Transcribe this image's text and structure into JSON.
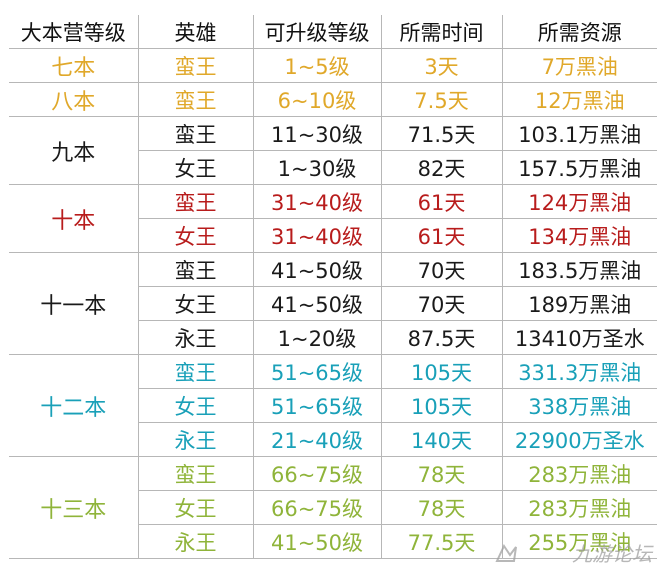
{
  "colors": {
    "gold": "#e0a82a",
    "dark": "#1a1a1a",
    "red": "#b81c1c",
    "teal": "#19a0b8",
    "green": "#8fb43a"
  },
  "headers": [
    "大本营等级",
    "英雄",
    "可升级等级",
    "所需时间",
    "所需资源"
  ],
  "groups": [
    {
      "level": "七本",
      "color": "#e0a82a",
      "rows": [
        {
          "hero": "蛮王",
          "range": "1~5级",
          "time": "3天",
          "cost": "7万黑油"
        }
      ]
    },
    {
      "level": "八本",
      "color": "#e0a82a",
      "rows": [
        {
          "hero": "蛮王",
          "range": "6~10级",
          "time": "7.5天",
          "cost": "12万黑油"
        }
      ]
    },
    {
      "level": "九本",
      "color": "#1a1a1a",
      "rows": [
        {
          "hero": "蛮王",
          "range": "11~30级",
          "time": "71.5天",
          "cost": "103.1万黑油"
        },
        {
          "hero": "女王",
          "range": "1~30级",
          "time": "82天",
          "cost": "157.5万黑油"
        }
      ]
    },
    {
      "level": "十本",
      "color": "#b81c1c",
      "rows": [
        {
          "hero": "蛮王",
          "range": "31~40级",
          "time": "61天",
          "cost": "124万黑油"
        },
        {
          "hero": "女王",
          "range": "31~40级",
          "time": "61天",
          "cost": "134万黑油"
        }
      ]
    },
    {
      "level": "十一本",
      "color": "#1a1a1a",
      "rows": [
        {
          "hero": "蛮王",
          "range": "41~50级",
          "time": "70天",
          "cost": "183.5万黑油"
        },
        {
          "hero": "女王",
          "range": "41~50级",
          "time": "70天",
          "cost": "189万黑油"
        },
        {
          "hero": "永王",
          "range": "1~20级",
          "time": "87.5天",
          "cost": "13410万圣水"
        }
      ]
    },
    {
      "level": "十二本",
      "color": "#19a0b8",
      "rows": [
        {
          "hero": "蛮王",
          "range": "51~65级",
          "time": "105天",
          "cost": "331.3万黑油"
        },
        {
          "hero": "女王",
          "range": "51~65级",
          "time": "105天",
          "cost": "338万黑油"
        },
        {
          "hero": "永王",
          "range": "21~40级",
          "time": "140天",
          "cost": "22900万圣水"
        }
      ]
    },
    {
      "level": "十三本",
      "color": "#8fb43a",
      "rows": [
        {
          "hero": "蛮王",
          "range": "66~75级",
          "time": "78天",
          "cost": "283万黑油"
        },
        {
          "hero": "女王",
          "range": "66~75级",
          "time": "78天",
          "cost": "283万黑油"
        },
        {
          "hero": "永王",
          "range": "41~50级",
          "time": "77.5天",
          "cost": "255万黑油"
        }
      ]
    }
  ],
  "watermark": "九游论坛"
}
